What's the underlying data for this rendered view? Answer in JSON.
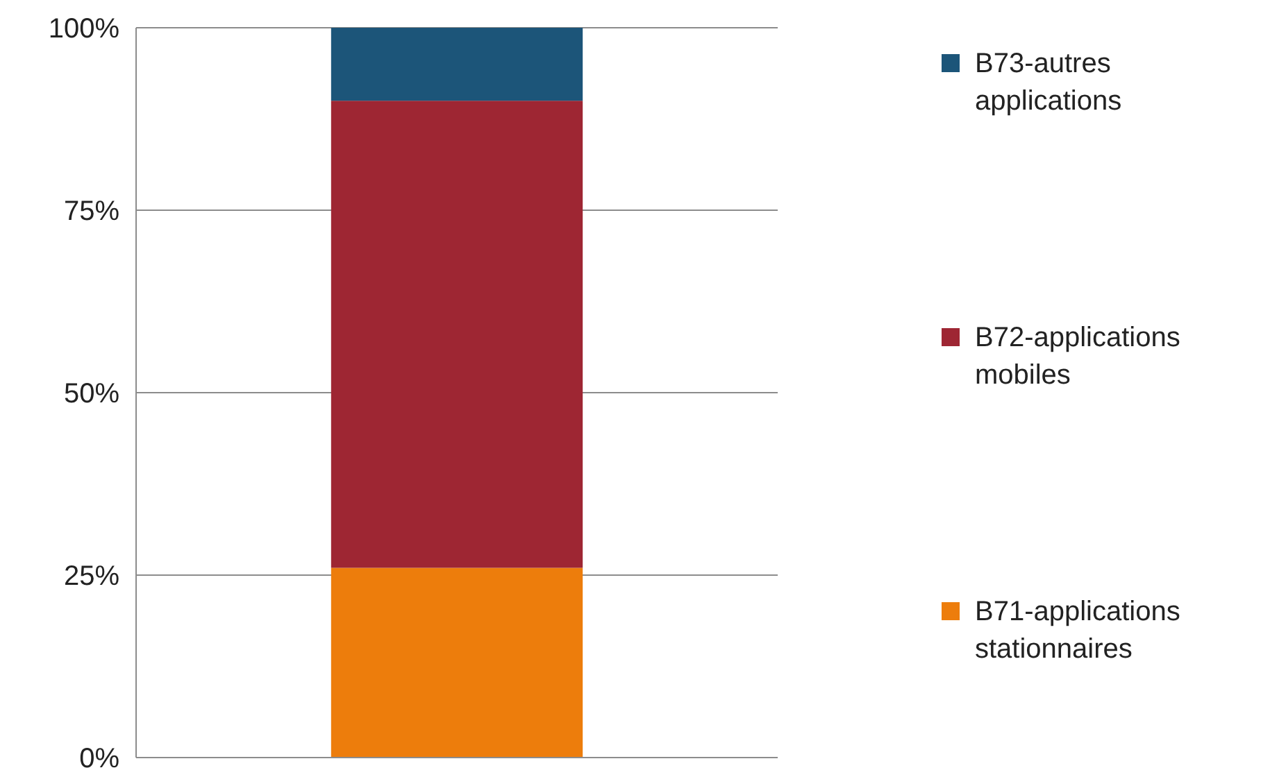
{
  "chart_data": {
    "type": "bar",
    "stacked": true,
    "categories": [
      null
    ],
    "series": [
      {
        "name": "B71-applications stationnaires",
        "color": "#ed7d0c",
        "values": [
          26
        ]
      },
      {
        "name": "B72-applications mobiles",
        "color": "#9e2633",
        "values": [
          64
        ]
      },
      {
        "name": "B73-autres applications",
        "color": "#1c5579",
        "values": [
          10
        ]
      }
    ],
    "ylim": [
      0,
      100
    ],
    "yticks": [
      {
        "value": 0,
        "label": "0%"
      },
      {
        "value": 25,
        "label": "25%"
      },
      {
        "value": 50,
        "label": "50%"
      },
      {
        "value": 75,
        "label": "75%"
      },
      {
        "value": 100,
        "label": "100%"
      }
    ],
    "grid": "y",
    "legend": "right"
  }
}
